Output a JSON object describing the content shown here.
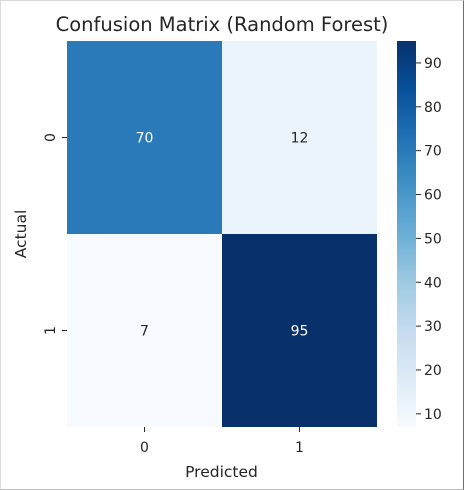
{
  "chart_data": {
    "type": "heatmap",
    "title": "Confusion Matrix (Random Forest)",
    "xlabel": "Predicted",
    "ylabel": "Actual",
    "x_categories": [
      "0",
      "1"
    ],
    "y_categories": [
      "0",
      "1"
    ],
    "values": [
      [
        70,
        12
      ],
      [
        7,
        95
      ]
    ],
    "colormap": "Blues",
    "colorbar": {
      "range": [
        7,
        95
      ],
      "ticks": [
        10,
        20,
        30,
        40,
        50,
        60,
        70,
        80,
        90
      ]
    },
    "colors": {
      "cmap": [
        "#f7fbff",
        "#deebf7",
        "#c6dbef",
        "#9ecae1",
        "#6baed6",
        "#4292c6",
        "#2171b5",
        "#08519c",
        "#08306b"
      ],
      "text_on_dark": "#ffffff",
      "text_on_light": "#262626"
    }
  }
}
